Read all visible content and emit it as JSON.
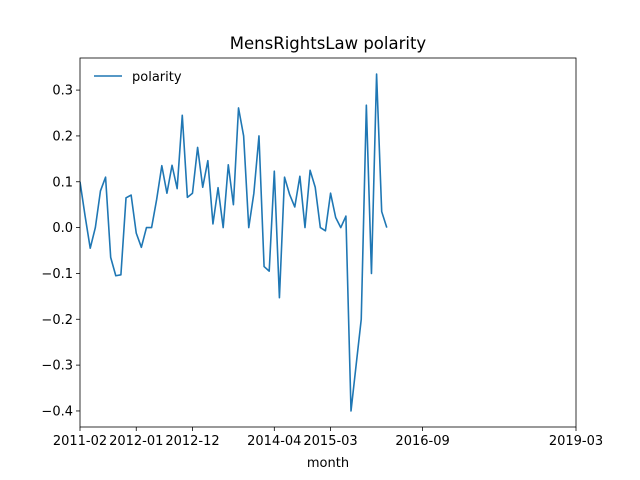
{
  "chart_data": {
    "type": "line",
    "title": "MensRightsLaw polarity",
    "xlabel": "month",
    "ylabel": "",
    "xlim": [
      "2011-02",
      "2019-03"
    ],
    "ylim": [
      -0.435,
      0.37
    ],
    "x_ticks": [
      "2011-02",
      "2012-01",
      "2012-12",
      "2014-04",
      "2015-03",
      "2016-09",
      "2019-03"
    ],
    "y_ticks": [
      -0.4,
      -0.3,
      -0.2,
      -0.1,
      0.0,
      0.1,
      0.2,
      0.3
    ],
    "y_tick_labels": [
      "−0.4",
      "−0.3",
      "−0.2",
      "−0.1",
      "0.0",
      "0.1",
      "0.2",
      "0.3"
    ],
    "grid": false,
    "legend_position": "top-left",
    "series": [
      {
        "name": "polarity",
        "color": "#1f77b4",
        "points": [
          [
            "2011-02",
            0.1
          ],
          [
            "2011-03",
            0.025
          ],
          [
            "2011-04",
            -0.045
          ],
          [
            "2011-05",
            0.0
          ],
          [
            "2011-06",
            0.08
          ],
          [
            "2011-07",
            0.11
          ],
          [
            "2011-08",
            -0.065
          ],
          [
            "2011-09",
            -0.105
          ],
          [
            "2011-10",
            -0.103
          ],
          [
            "2011-11",
            0.065
          ],
          [
            "2011-12",
            0.071
          ],
          [
            "2012-01",
            -0.012
          ],
          [
            "2012-02",
            -0.043
          ],
          [
            "2012-03",
            0.0
          ],
          [
            "2012-04",
            0.0
          ],
          [
            "2012-05",
            0.062
          ],
          [
            "2012-06",
            0.135
          ],
          [
            "2012-07",
            0.075
          ],
          [
            "2012-08",
            0.136
          ],
          [
            "2012-09",
            0.085
          ],
          [
            "2012-10",
            0.245
          ],
          [
            "2012-11",
            0.066
          ],
          [
            "2012-12",
            0.075
          ],
          [
            "2013-01",
            0.175
          ],
          [
            "2013-02",
            0.088
          ],
          [
            "2013-03",
            0.146
          ],
          [
            "2013-04",
            0.008
          ],
          [
            "2013-05",
            0.087
          ],
          [
            "2013-06",
            0.0
          ],
          [
            "2013-07",
            0.137
          ],
          [
            "2013-08",
            0.05
          ],
          [
            "2013-09",
            0.261
          ],
          [
            "2013-10",
            0.2
          ],
          [
            "2013-11",
            0.0
          ],
          [
            "2013-12",
            0.075
          ],
          [
            "2014-01",
            0.2
          ],
          [
            "2014-02",
            -0.085
          ],
          [
            "2014-03",
            -0.095
          ],
          [
            "2014-04",
            0.123
          ],
          [
            "2014-05",
            -0.153
          ],
          [
            "2014-06",
            0.11
          ],
          [
            "2014-07",
            0.072
          ],
          [
            "2014-08",
            0.045
          ],
          [
            "2014-09",
            0.112
          ],
          [
            "2014-10",
            0.0
          ],
          [
            "2014-11",
            0.125
          ],
          [
            "2014-12",
            0.088
          ],
          [
            "2015-01",
            0.0
          ],
          [
            "2015-02",
            -0.007
          ],
          [
            "2015-03",
            0.075
          ],
          [
            "2015-04",
            0.022
          ],
          [
            "2015-05",
            0.0
          ],
          [
            "2015-06",
            0.025
          ],
          [
            "2015-07",
            -0.4
          ],
          [
            "2015-08",
            -0.3
          ],
          [
            "2015-09",
            -0.2
          ],
          [
            "2015-10",
            0.267
          ],
          [
            "2015-11",
            -0.1
          ],
          [
            "2015-12",
            0.335
          ],
          [
            "2016-01",
            0.035
          ],
          [
            "2016-02",
            0.0
          ]
        ]
      }
    ]
  }
}
